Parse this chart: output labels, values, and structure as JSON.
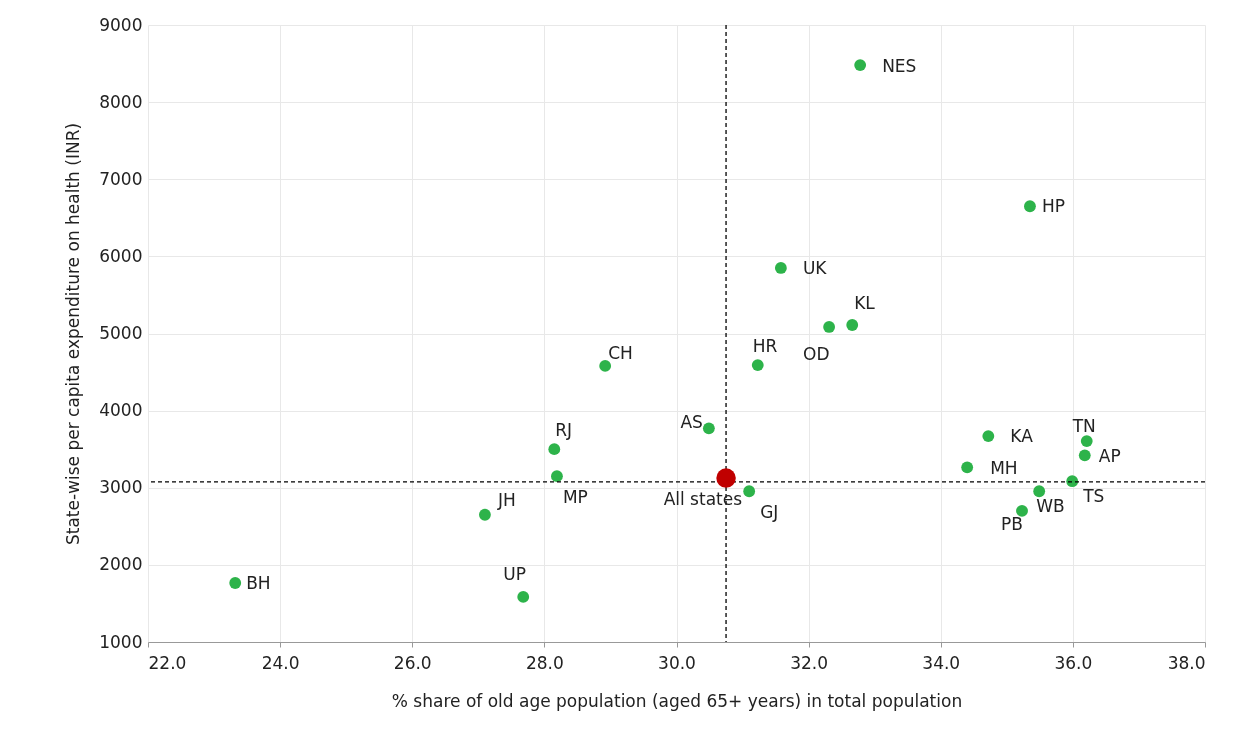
{
  "chart_data": {
    "type": "scatter",
    "xlabel": "% share of old age population (aged 65+ years) in total population",
    "ylabel": "State-wise per capita expenditure on health (INR)",
    "xlim": [
      22,
      38
    ],
    "xticks": [
      {
        "value": 22,
        "label": "22.0"
      },
      {
        "value": 24,
        "label": "24.0"
      },
      {
        "value": 26,
        "label": "26.0"
      },
      {
        "value": 28,
        "label": "28.0"
      },
      {
        "value": 30,
        "label": "30.0"
      },
      {
        "value": 32,
        "label": "32.0"
      },
      {
        "value": 34,
        "label": "34.0"
      },
      {
        "value": 36,
        "label": "36.0"
      },
      {
        "value": 38,
        "label": "38.0"
      }
    ],
    "ylim": [
      1000,
      9000
    ],
    "yticks": [
      1000,
      2000,
      3000,
      4000,
      5000,
      6000,
      7000,
      8000,
      9000
    ],
    "grid": true,
    "marker": "circle",
    "series": [
      {
        "color": "#2db34a",
        "x": [
          32.78,
          35.35,
          31.58,
          32.66,
          32.31,
          28.92,
          31.23,
          30.49,
          28.15,
          34.72,
          36.21,
          36.18,
          34.4,
          28.19,
          35.99,
          31.1,
          35.49,
          35.23,
          27.1,
          27.68,
          23.32
        ],
        "values": [
          8480,
          6650,
          5850,
          5110,
          5085,
          4580,
          4590,
          3770,
          3500,
          3670,
          3605,
          3420,
          3265,
          3150,
          3085,
          2955,
          2955,
          2700,
          2650,
          1585,
          1765
        ]
      },
      {
        "color": "#c00000",
        "x": [
          30.75
        ],
        "values": [
          3125
        ]
      }
    ],
    "ref_lines": [
      {
        "axis": "x",
        "value": 30.75,
        "line_style": "dashed",
        "color": "#000000"
      },
      {
        "axis": "y",
        "value": 3075,
        "line_style": "dashed",
        "color": "#000000"
      }
    ],
    "annotations": [
      {
        "text": "NES",
        "x": 32.78,
        "y": 8480
      },
      {
        "text": "HP",
        "x": 35.35,
        "y": 6650
      },
      {
        "text": "UK",
        "x": 31.58,
        "y": 5850
      },
      {
        "text": "KL",
        "x": 32.66,
        "y": 5110
      },
      {
        "text": "OD",
        "x": 32.31,
        "y": 5085
      },
      {
        "text": "CH",
        "x": 28.92,
        "y": 4580
      },
      {
        "text": "HR",
        "x": 31.23,
        "y": 4590
      },
      {
        "text": "AS",
        "x": 30.49,
        "y": 3770
      },
      {
        "text": "RJ",
        "x": 28.15,
        "y": 3500
      },
      {
        "text": "KA",
        "x": 34.72,
        "y": 3670
      },
      {
        "text": "TN",
        "x": 36.21,
        "y": 3605
      },
      {
        "text": "AP",
        "x": 36.18,
        "y": 3420
      },
      {
        "text": "MH",
        "x": 34.4,
        "y": 3265
      },
      {
        "text": "MP",
        "x": 28.19,
        "y": 3150
      },
      {
        "text": "TS",
        "x": 35.99,
        "y": 3085
      },
      {
        "text": "GJ",
        "x": 31.1,
        "y": 2955
      },
      {
        "text": "WB",
        "x": 35.49,
        "y": 2955
      },
      {
        "text": "PB",
        "x": 35.23,
        "y": 2700
      },
      {
        "text": "JH",
        "x": 27.1,
        "y": 2650
      },
      {
        "text": "UP",
        "x": 27.68,
        "y": 1585
      },
      {
        "text": "BH",
        "x": 23.32,
        "y": 1765
      },
      {
        "text": "All states",
        "x": 30.75,
        "y": 3125
      }
    ]
  }
}
